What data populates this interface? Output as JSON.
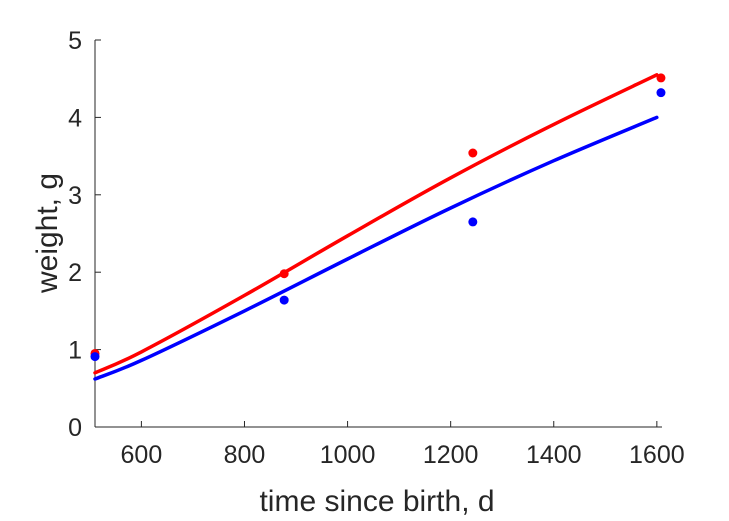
{
  "chart_data": {
    "type": "scatter",
    "title": "",
    "xlabel": "time since birth, d",
    "ylabel": "weight, g",
    "xlim": [
      510,
      1610
    ],
    "ylim": [
      0,
      5
    ],
    "xticks": [
      600,
      800,
      1000,
      1200,
      1400,
      1600
    ],
    "yticks": [
      0,
      1,
      2,
      3,
      4,
      5
    ],
    "grid": false,
    "legend": "none",
    "series": [
      {
        "color": "#ff0000",
        "points": {
          "x": [
            510,
            877,
            1243,
            1608
          ],
          "y": [
            0.95,
            1.98,
            3.54,
            4.51
          ]
        },
        "curve": {
          "x": [
            510,
            600,
            800,
            1000,
            1200,
            1400,
            1600
          ],
          "y": [
            0.7,
            0.97,
            1.7,
            2.47,
            3.22,
            3.91,
            4.55
          ]
        }
      },
      {
        "color": "#0000ff",
        "points": {
          "x": [
            510,
            877,
            1243,
            1608
          ],
          "y": [
            0.91,
            1.64,
            2.65,
            4.32
          ]
        },
        "curve": {
          "x": [
            510,
            600,
            800,
            1000,
            1200,
            1400,
            1600
          ],
          "y": [
            0.62,
            0.86,
            1.5,
            2.17,
            2.83,
            3.44,
            4.0
          ]
        }
      }
    ]
  }
}
